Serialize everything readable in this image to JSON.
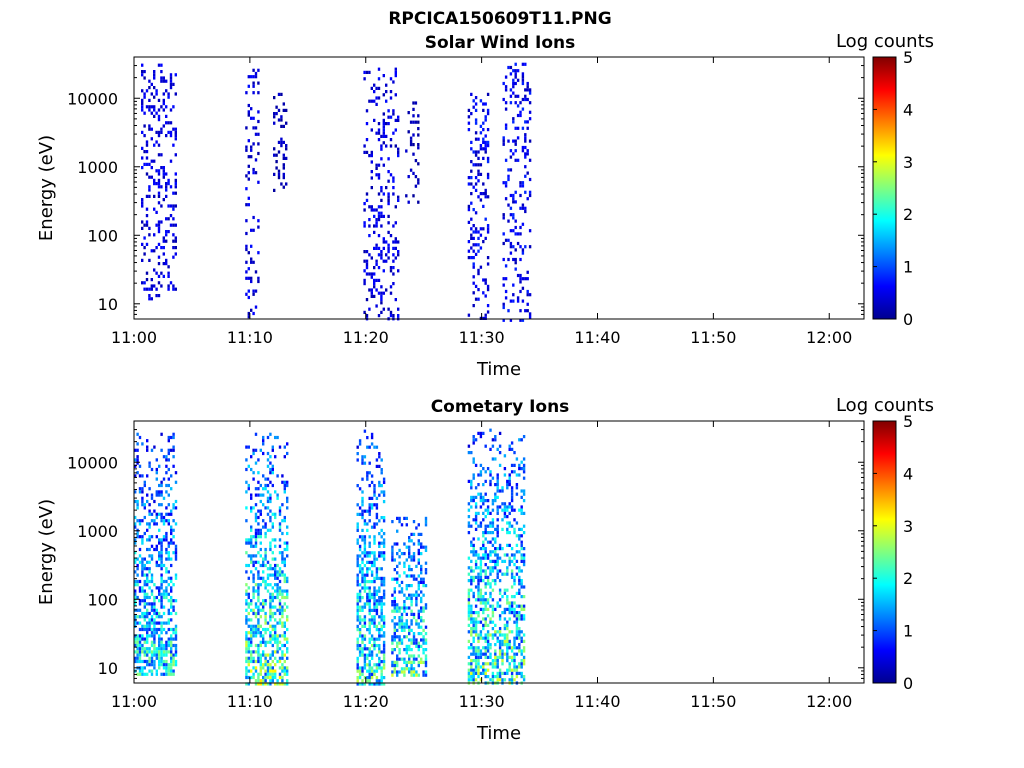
{
  "figure": {
    "title": "RPCICA150609T11.PNG"
  },
  "colorbar": {
    "label": "Log counts",
    "min": 0,
    "max": 5,
    "ticks": [
      "0",
      "1",
      "2",
      "3",
      "4",
      "5"
    ],
    "colormap": "jet"
  },
  "chart_data": [
    {
      "type": "heatmap",
      "title": "Solar Wind Ions",
      "xlabel": "Time",
      "ylabel": "Energy (eV)",
      "x_range": [
        "11:00",
        "12:03"
      ],
      "y_range_eV": [
        6,
        40000
      ],
      "y_scale": "log",
      "x_ticks": [
        "11:00",
        "11:10",
        "11:20",
        "11:30",
        "11:40",
        "11:50",
        "12:00"
      ],
      "y_ticks": [
        "10",
        "100",
        "1000",
        "10000"
      ],
      "bursts": [
        {
          "t_start": 11.01,
          "t_end": 11.06,
          "e_min": 12,
          "e_max": 32000,
          "level": 0.5
        },
        {
          "t_start": 11.16,
          "t_end": 11.18,
          "e_min": 6,
          "e_max": 27000,
          "level": 0.5
        },
        {
          "t_start": 11.2,
          "t_end": 11.22,
          "e_min": 400,
          "e_max": 12000,
          "level": 0.3
        },
        {
          "t_start": 11.33,
          "t_end": 11.38,
          "e_min": 6,
          "e_max": 28000,
          "level": 0.5
        },
        {
          "t_start": 11.39,
          "t_end": 11.41,
          "e_min": 300,
          "e_max": 9000,
          "level": 0.3
        },
        {
          "t_start": 11.48,
          "t_end": 11.51,
          "e_min": 6,
          "e_max": 12000,
          "level": 0.6
        },
        {
          "t_start": 11.53,
          "t_end": 11.57,
          "e_min": 6,
          "e_max": 33000,
          "level": 0.6
        }
      ]
    },
    {
      "type": "heatmap",
      "title": "Cometary Ions",
      "xlabel": "Time",
      "ylabel": "Energy (eV)",
      "x_range": [
        "11:00",
        "12:03"
      ],
      "y_range_eV": [
        6,
        40000
      ],
      "y_scale": "log",
      "x_ticks": [
        "11:00",
        "11:10",
        "11:20",
        "11:30",
        "11:40",
        "11:50",
        "12:00"
      ],
      "y_ticks": [
        "10",
        "100",
        "1000",
        "10000"
      ],
      "bursts": [
        {
          "t_start": 11.0,
          "t_end": 11.06,
          "e_min": 8,
          "e_max": 27000,
          "level": 2.0
        },
        {
          "t_start": 11.16,
          "t_end": 11.22,
          "e_min": 6,
          "e_max": 27000,
          "level": 2.4
        },
        {
          "t_start": 11.32,
          "t_end": 11.36,
          "e_min": 6,
          "e_max": 30000,
          "level": 2.1
        },
        {
          "t_start": 11.37,
          "t_end": 11.42,
          "e_min": 8,
          "e_max": 1600,
          "level": 2.2
        },
        {
          "t_start": 11.48,
          "t_end": 11.56,
          "e_min": 6,
          "e_max": 31000,
          "level": 2.3
        }
      ]
    }
  ]
}
